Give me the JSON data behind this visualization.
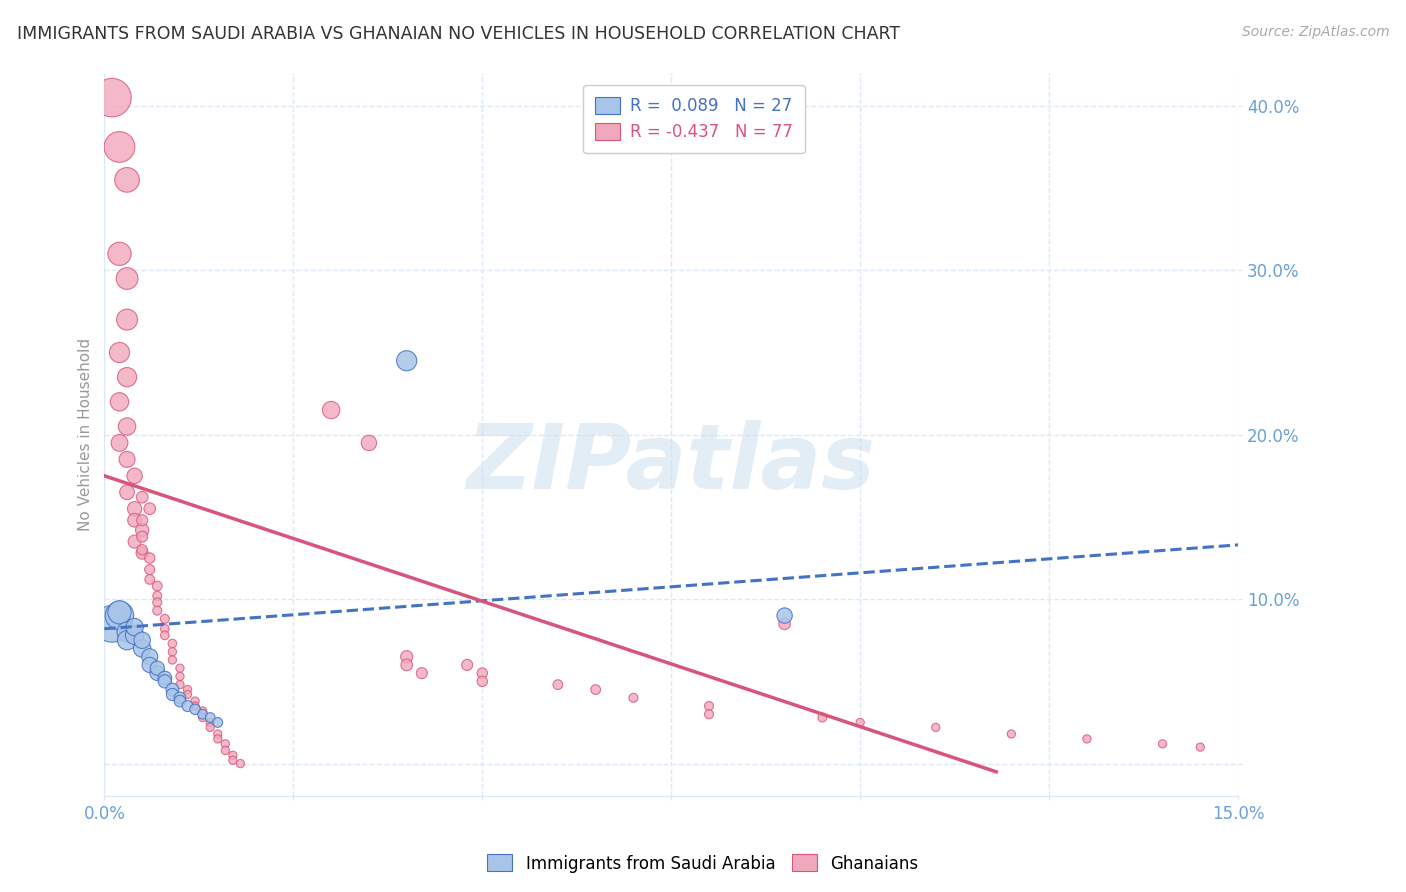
{
  "title": "IMMIGRANTS FROM SAUDI ARABIA VS GHANAIAN NO VEHICLES IN HOUSEHOLD CORRELATION CHART",
  "source": "Source: ZipAtlas.com",
  "ylabel": "No Vehicles in Household",
  "legend_label_blue": "Immigrants from Saudi Arabia",
  "legend_label_pink": "Ghanaians",
  "watermark": "ZIPatlas",
  "blue_color": "#a8c4e8",
  "pink_color": "#f0a8bc",
  "blue_line_color": "#4472c4",
  "pink_line_color": "#d9547a",
  "axis_color": "#6aa0d8",
  "title_color": "#333333",
  "xmin": 0.0,
  "xmax": 0.15,
  "ymin": -0.02,
  "ymax": 0.42,
  "blue_scatter": [
    [
      0.001,
      0.085
    ],
    [
      0.002,
      0.09
    ],
    [
      0.002,
      0.092
    ],
    [
      0.003,
      0.08
    ],
    [
      0.003,
      0.075
    ],
    [
      0.004,
      0.078
    ],
    [
      0.004,
      0.083
    ],
    [
      0.005,
      0.07
    ],
    [
      0.005,
      0.075
    ],
    [
      0.006,
      0.065
    ],
    [
      0.006,
      0.06
    ],
    [
      0.007,
      0.055
    ],
    [
      0.007,
      0.058
    ],
    [
      0.008,
      0.052
    ],
    [
      0.008,
      0.05
    ],
    [
      0.009,
      0.045
    ],
    [
      0.009,
      0.042
    ],
    [
      0.01,
      0.04
    ],
    [
      0.01,
      0.038
    ],
    [
      0.011,
      0.035
    ],
    [
      0.012,
      0.033
    ],
    [
      0.013,
      0.03
    ],
    [
      0.014,
      0.028
    ],
    [
      0.04,
      0.245
    ],
    [
      0.09,
      0.09
    ],
    [
      0.015,
      0.025
    ]
  ],
  "blue_sizes": [
    200,
    120,
    80,
    60,
    55,
    50,
    45,
    45,
    40,
    38,
    35,
    32,
    30,
    28,
    26,
    24,
    22,
    20,
    20,
    18,
    16,
    14,
    14,
    60,
    35,
    14
  ],
  "pink_scatter": [
    [
      0.001,
      0.405
    ],
    [
      0.002,
      0.375
    ],
    [
      0.003,
      0.355
    ],
    [
      0.002,
      0.31
    ],
    [
      0.003,
      0.295
    ],
    [
      0.003,
      0.27
    ],
    [
      0.002,
      0.25
    ],
    [
      0.003,
      0.235
    ],
    [
      0.002,
      0.22
    ],
    [
      0.003,
      0.205
    ],
    [
      0.002,
      0.195
    ],
    [
      0.003,
      0.185
    ],
    [
      0.004,
      0.175
    ],
    [
      0.003,
      0.165
    ],
    [
      0.004,
      0.155
    ],
    [
      0.004,
      0.148
    ],
    [
      0.005,
      0.142
    ],
    [
      0.004,
      0.135
    ],
    [
      0.005,
      0.128
    ],
    [
      0.005,
      0.162
    ],
    [
      0.006,
      0.155
    ],
    [
      0.005,
      0.148
    ],
    [
      0.005,
      0.138
    ],
    [
      0.005,
      0.13
    ],
    [
      0.006,
      0.125
    ],
    [
      0.006,
      0.118
    ],
    [
      0.006,
      0.112
    ],
    [
      0.007,
      0.108
    ],
    [
      0.007,
      0.102
    ],
    [
      0.007,
      0.098
    ],
    [
      0.007,
      0.093
    ],
    [
      0.008,
      0.088
    ],
    [
      0.008,
      0.082
    ],
    [
      0.008,
      0.078
    ],
    [
      0.009,
      0.073
    ],
    [
      0.009,
      0.068
    ],
    [
      0.009,
      0.063
    ],
    [
      0.01,
      0.058
    ],
    [
      0.01,
      0.053
    ],
    [
      0.01,
      0.048
    ],
    [
      0.011,
      0.045
    ],
    [
      0.011,
      0.042
    ],
    [
      0.012,
      0.038
    ],
    [
      0.012,
      0.035
    ],
    [
      0.013,
      0.032
    ],
    [
      0.013,
      0.028
    ],
    [
      0.014,
      0.025
    ],
    [
      0.014,
      0.022
    ],
    [
      0.015,
      0.018
    ],
    [
      0.015,
      0.015
    ],
    [
      0.016,
      0.012
    ],
    [
      0.016,
      0.008
    ],
    [
      0.017,
      0.005
    ],
    [
      0.017,
      0.002
    ],
    [
      0.018,
      0.0
    ],
    [
      0.03,
      0.215
    ],
    [
      0.035,
      0.195
    ],
    [
      0.04,
      0.065
    ],
    [
      0.04,
      0.06
    ],
    [
      0.042,
      0.055
    ],
    [
      0.048,
      0.06
    ],
    [
      0.05,
      0.055
    ],
    [
      0.05,
      0.05
    ],
    [
      0.06,
      0.048
    ],
    [
      0.065,
      0.045
    ],
    [
      0.07,
      0.04
    ],
    [
      0.08,
      0.035
    ],
    [
      0.08,
      0.03
    ],
    [
      0.09,
      0.085
    ],
    [
      0.095,
      0.028
    ],
    [
      0.1,
      0.025
    ],
    [
      0.11,
      0.022
    ],
    [
      0.12,
      0.018
    ],
    [
      0.13,
      0.015
    ],
    [
      0.14,
      0.012
    ],
    [
      0.145,
      0.01
    ]
  ],
  "pink_sizes": [
    220,
    140,
    90,
    80,
    70,
    65,
    60,
    55,
    50,
    45,
    42,
    38,
    35,
    32,
    30,
    28,
    26,
    25,
    22,
    20,
    20,
    18,
    18,
    16,
    16,
    15,
    14,
    14,
    12,
    12,
    12,
    12,
    11,
    11,
    11,
    10,
    10,
    10,
    10,
    10,
    10,
    10,
    10,
    10,
    10,
    10,
    10,
    10,
    10,
    10,
    10,
    10,
    10,
    10,
    10,
    45,
    35,
    22,
    20,
    18,
    18,
    16,
    16,
    14,
    14,
    12,
    12,
    12,
    20,
    12,
    10,
    10,
    10,
    10,
    10,
    10
  ],
  "blue_trendline_x": [
    0.0,
    0.15
  ],
  "blue_trendline_y": [
    0.082,
    0.133
  ],
  "pink_trendline_x": [
    0.0,
    0.118
  ],
  "pink_trendline_y": [
    0.175,
    -0.005
  ],
  "grid_color": "#dce8f5",
  "background_color": "#ffffff",
  "yticks": [
    0.0,
    0.1,
    0.2,
    0.3,
    0.4
  ],
  "ytick_labels": [
    "",
    "10.0%",
    "20.0%",
    "30.0%",
    "40.0%"
  ],
  "xtick_positions": [
    0.0,
    0.025,
    0.05,
    0.075,
    0.1,
    0.125,
    0.15
  ]
}
